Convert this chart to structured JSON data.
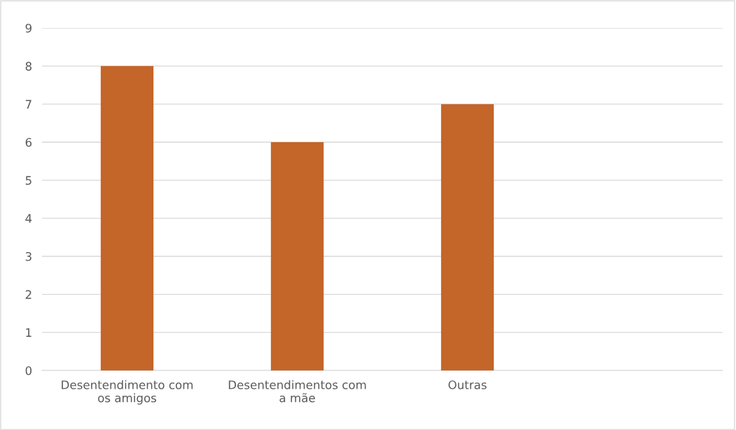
{
  "chart_data": {
    "type": "bar",
    "categories": [
      "Desentendimento com\nos amigos",
      "Desentendimentos com\na mãe",
      "Outras",
      null
    ],
    "values": [
      8,
      6,
      7,
      null
    ],
    "color": "#c4652a",
    "ylim": [
      0,
      9
    ],
    "yticks": [
      0,
      1,
      2,
      3,
      4,
      5,
      6,
      7,
      8,
      9
    ],
    "grid": "y",
    "legend": false
  }
}
